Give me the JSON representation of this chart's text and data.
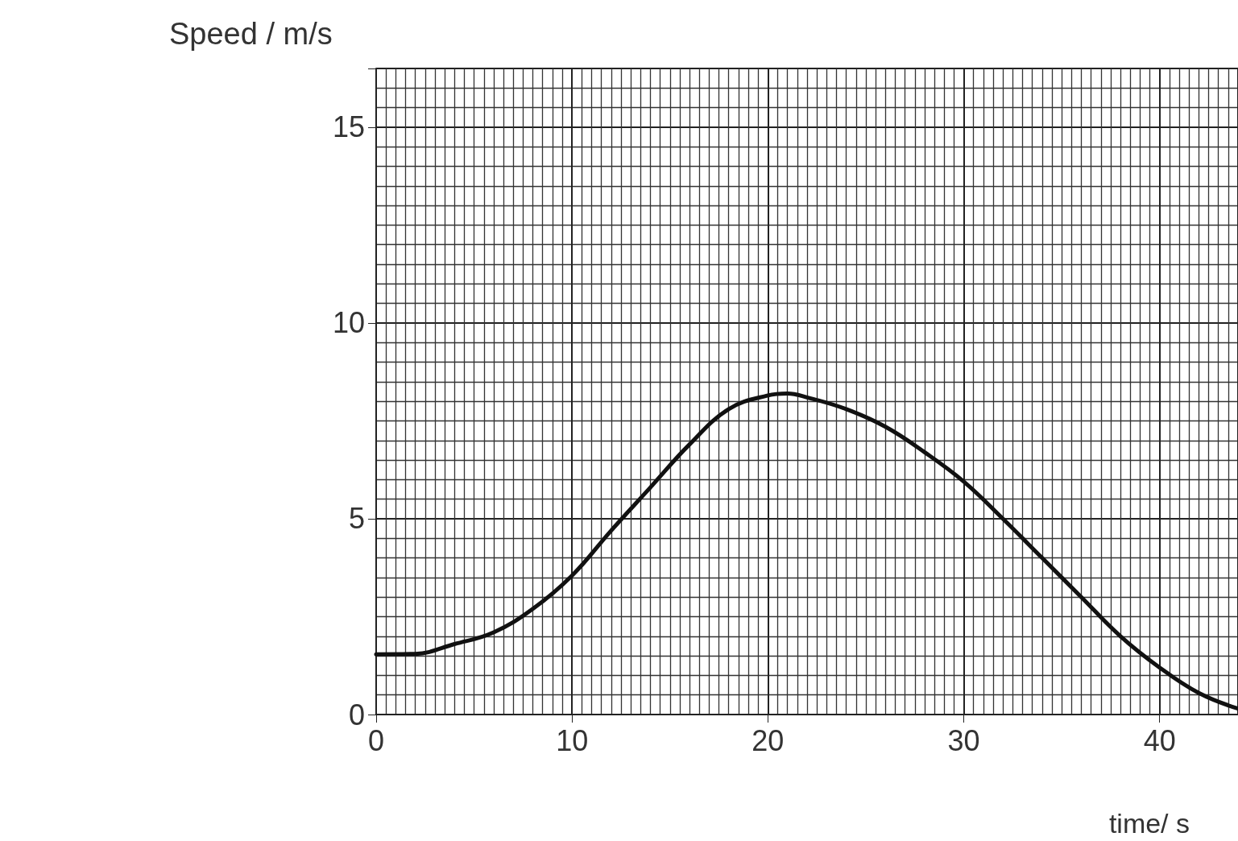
{
  "chart_data": {
    "type": "line",
    "xlabel": "time/ s",
    "ylabel": "Speed / m/s",
    "x": [
      0,
      2,
      4,
      6,
      8,
      10,
      12,
      14,
      16,
      18,
      20,
      21,
      22,
      24,
      26,
      28,
      30,
      32,
      34,
      36,
      38,
      40,
      42,
      44
    ],
    "series": [
      {
        "color": "#111111",
        "values": [
          1.54,
          1.55,
          1.8,
          2.1,
          2.7,
          3.55,
          4.7,
          5.8,
          6.9,
          7.8,
          8.15,
          8.2,
          8.1,
          7.8,
          7.35,
          6.7,
          5.95,
          5.0,
          4.0,
          3.0,
          2.0,
          1.2,
          0.55,
          0.15
        ]
      }
    ],
    "xlim": [
      0,
      44
    ],
    "xticks": [
      0,
      10,
      20,
      30,
      40
    ],
    "ylim": [
      0,
      16.5
    ],
    "yticks": [
      0,
      5,
      10,
      15
    ],
    "grid": true,
    "marker": "none",
    "line_style": "solid"
  }
}
